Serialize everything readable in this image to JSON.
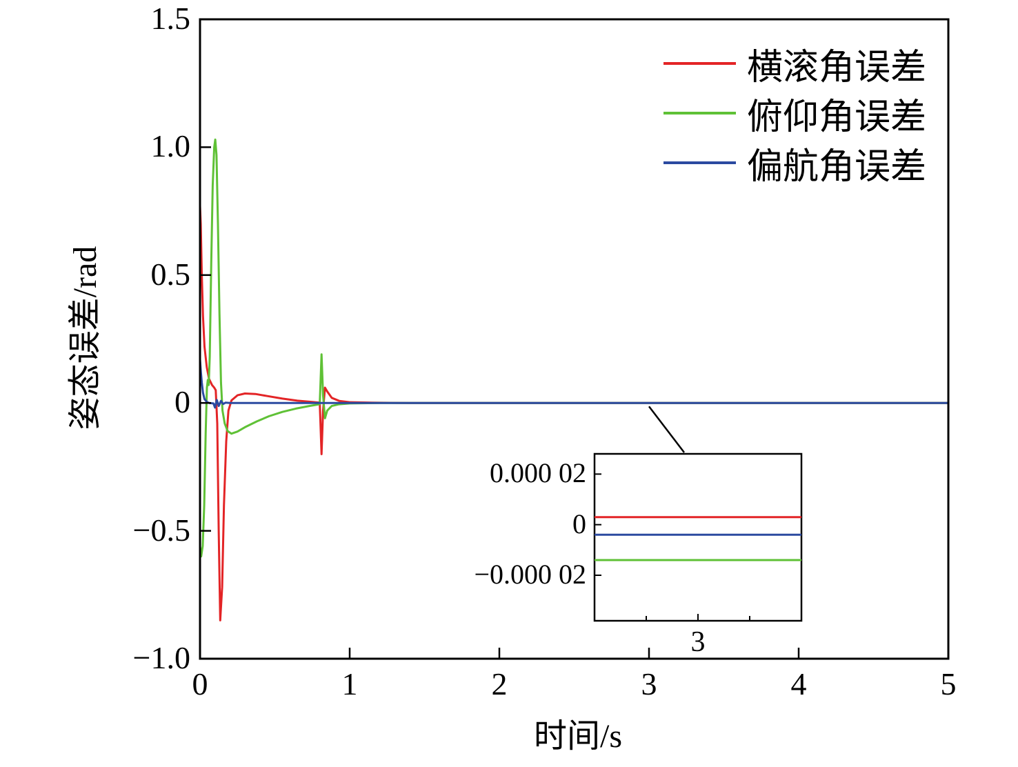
{
  "chart_data": {
    "type": "line",
    "title": "",
    "xlabel": "时间/s",
    "ylabel": "姿态误差/rad",
    "xlim": [
      0,
      5
    ],
    "ylim": [
      -1.0,
      1.5
    ],
    "grid": false,
    "legend_position": "top-right",
    "x_ticks": [
      0,
      1,
      2,
      3,
      4,
      5
    ],
    "x_tick_labels": [
      "0",
      "1",
      "2",
      "3",
      "4",
      "5"
    ],
    "y_ticks": [
      1.5,
      1.0,
      0.5,
      0,
      -0.5,
      -1.0
    ],
    "y_tick_labels": [
      "1.5",
      "1.0",
      "0.5",
      "0",
      "−0.5",
      "−1.0"
    ],
    "legend": [
      {
        "label": "横滚角误差",
        "color": "#e32426"
      },
      {
        "label": "俯仰角误差",
        "color": "#5fc136"
      },
      {
        "label": "偏航角误差",
        "color": "#2b4aa0"
      }
    ],
    "series": [
      {
        "id": "roll-error",
        "name": "横滚角误差",
        "color": "#e32426",
        "points": [
          [
            0,
            0.77
          ],
          [
            0.005,
            0.7
          ],
          [
            0.012,
            0.5
          ],
          [
            0.02,
            0.34
          ],
          [
            0.03,
            0.22
          ],
          [
            0.045,
            0.14
          ],
          [
            0.06,
            0.095
          ],
          [
            0.08,
            0.07
          ],
          [
            0.095,
            0.06
          ],
          [
            0.105,
            0.05
          ],
          [
            0.115,
            -0.08
          ],
          [
            0.125,
            -0.5
          ],
          [
            0.135,
            -0.85
          ],
          [
            0.148,
            -0.72
          ],
          [
            0.16,
            -0.4
          ],
          [
            0.175,
            -0.15
          ],
          [
            0.19,
            -0.03
          ],
          [
            0.21,
            0.01
          ],
          [
            0.25,
            0.03
          ],
          [
            0.3,
            0.037
          ],
          [
            0.37,
            0.035
          ],
          [
            0.45,
            0.027
          ],
          [
            0.55,
            0.017
          ],
          [
            0.65,
            0.009
          ],
          [
            0.75,
            0.004
          ],
          [
            0.8,
            0.001
          ],
          [
            0.812,
            -0.2
          ],
          [
            0.822,
            -0.03
          ],
          [
            0.835,
            0.06
          ],
          [
            0.85,
            0.045
          ],
          [
            0.88,
            0.02
          ],
          [
            0.93,
            0.008
          ],
          [
            1.0,
            0.003
          ],
          [
            1.15,
            0.001
          ],
          [
            1.4,
            0
          ],
          [
            5,
            0
          ]
        ]
      },
      {
        "id": "pitch-error",
        "name": "俯仰角误差",
        "color": "#5fc136",
        "points": [
          [
            0,
            -0.56
          ],
          [
            0.008,
            -0.6
          ],
          [
            0.018,
            -0.56
          ],
          [
            0.028,
            -0.4
          ],
          [
            0.038,
            -0.12
          ],
          [
            0.046,
            0.06
          ],
          [
            0.052,
            0.09
          ],
          [
            0.058,
            0.07
          ],
          [
            0.065,
            0.18
          ],
          [
            0.075,
            0.55
          ],
          [
            0.085,
            0.85
          ],
          [
            0.095,
            1.0
          ],
          [
            0.102,
            1.03
          ],
          [
            0.11,
            0.97
          ],
          [
            0.12,
            0.7
          ],
          [
            0.13,
            0.35
          ],
          [
            0.14,
            0.08
          ],
          [
            0.15,
            -0.03
          ],
          [
            0.165,
            -0.08
          ],
          [
            0.185,
            -0.11
          ],
          [
            0.21,
            -0.12
          ],
          [
            0.25,
            -0.112
          ],
          [
            0.3,
            -0.095
          ],
          [
            0.38,
            -0.072
          ],
          [
            0.46,
            -0.052
          ],
          [
            0.55,
            -0.035
          ],
          [
            0.64,
            -0.022
          ],
          [
            0.73,
            -0.012
          ],
          [
            0.79,
            -0.006
          ],
          [
            0.8,
            -0.004
          ],
          [
            0.812,
            0.19
          ],
          [
            0.822,
            0.03
          ],
          [
            0.835,
            -0.06
          ],
          [
            0.85,
            -0.03
          ],
          [
            0.88,
            -0.012
          ],
          [
            0.93,
            -0.005
          ],
          [
            1.0,
            -0.002
          ],
          [
            1.2,
            0
          ],
          [
            5,
            0
          ]
        ]
      },
      {
        "id": "yaw-error",
        "name": "偏航角误差",
        "color": "#2b4aa0",
        "points": [
          [
            0,
            0.17
          ],
          [
            0.006,
            0.12
          ],
          [
            0.012,
            0.08
          ],
          [
            0.02,
            0.04
          ],
          [
            0.03,
            0.015
          ],
          [
            0.045,
            0.004
          ],
          [
            0.06,
            0
          ],
          [
            0.09,
            -0.002
          ],
          [
            0.1,
            -0.018
          ],
          [
            0.112,
            0.012
          ],
          [
            0.125,
            -0.012
          ],
          [
            0.14,
            0.008
          ],
          [
            0.155,
            -0.004
          ],
          [
            0.17,
            0.001
          ],
          [
            0.2,
            0
          ],
          [
            5,
            0
          ]
        ]
      }
    ],
    "inset": {
      "xlim": [
        2.5,
        3.5
      ],
      "ylim": [
        -3.8e-05,
        2.8e-05
      ],
      "x_ticks": [
        3
      ],
      "x_tick_labels": [
        "3"
      ],
      "x_minor_ticks": [
        2.75,
        3.25
      ],
      "y_ticks": [
        2e-05,
        0,
        -2e-05
      ],
      "y_tick_labels": [
        "0.000 02",
        "0",
        "−0.000 02"
      ],
      "series": [
        {
          "id": "roll-error-inset",
          "name": "横滚角误差",
          "color": "#e32426",
          "points": [
            [
              2.5,
              3e-06
            ],
            [
              3.5,
              3e-06
            ]
          ]
        },
        {
          "id": "pitch-error-inset",
          "name": "俯仰角误差",
          "color": "#5fc136",
          "points": [
            [
              2.5,
              -1.4e-05
            ],
            [
              3.5,
              -1.4e-05
            ]
          ]
        },
        {
          "id": "yaw-error-inset",
          "name": "偏航角误差",
          "color": "#2b4aa0",
          "points": [
            [
              2.5,
              -4e-06
            ],
            [
              3.5,
              -4e-06
            ]
          ]
        }
      ]
    },
    "annotation": {
      "from_x": 3.0,
      "from_y": 0
    }
  }
}
